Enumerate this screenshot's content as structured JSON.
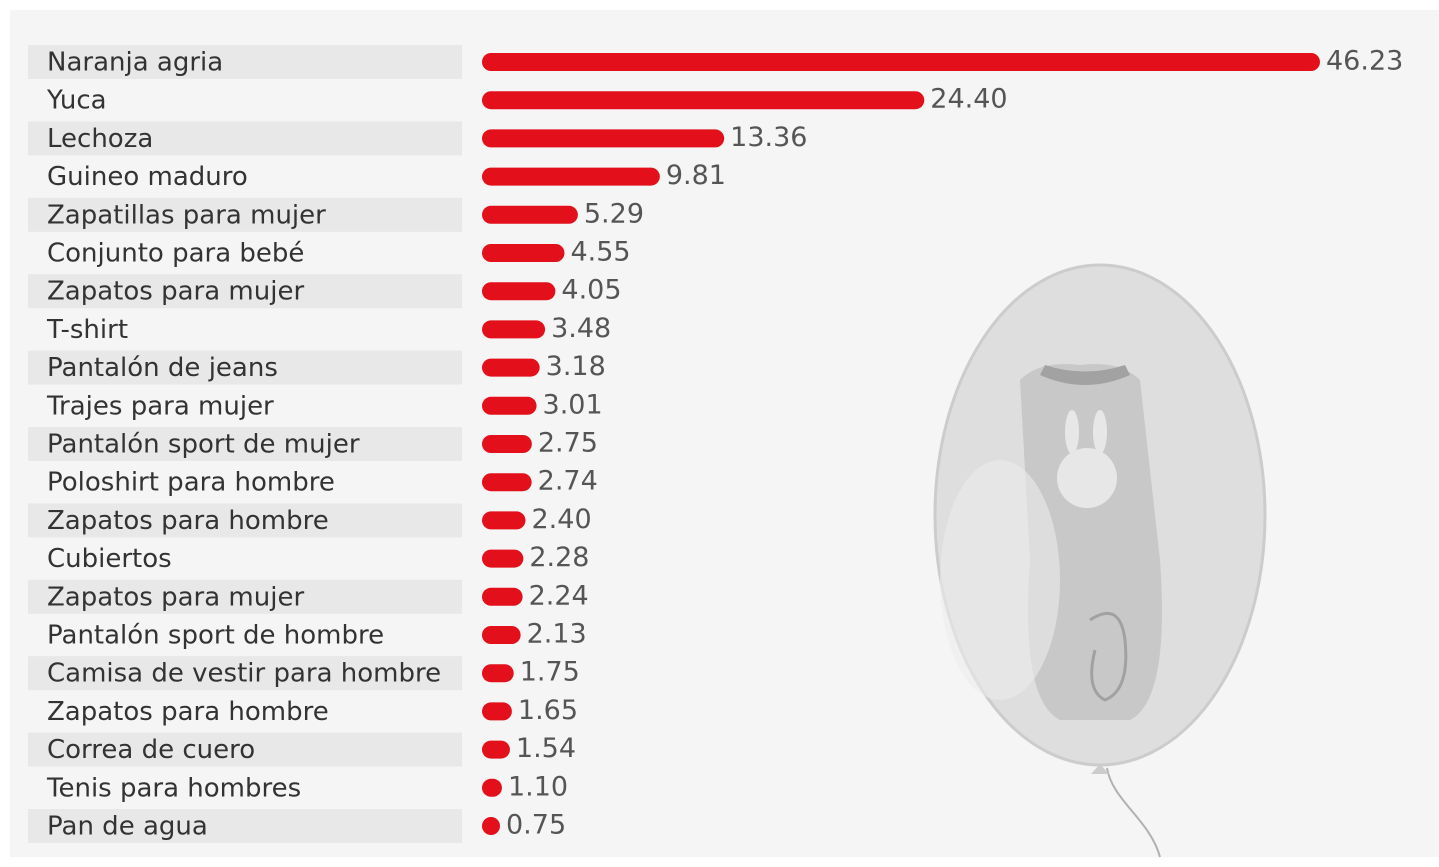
{
  "chart_data": {
    "type": "bar",
    "orientation": "horizontal",
    "color": "#e30f1b",
    "categories": [
      "Naranja agria",
      "Yuca",
      "Lechoza",
      "Guineo maduro",
      "Zapatillas para mujer",
      "Conjunto para bebé",
      "Zapatos para mujer",
      "T-shirt",
      "Pantalón de jeans",
      "Trajes para mujer",
      "Pantalón sport de mujer",
      "Poloshirt para hombre",
      "Zapatos para hombre",
      "Cubiertos",
      "Zapatos para mujer",
      "Pantalón sport de hombre",
      "Camisa de vestir para hombre",
      "Zapatos para hombre",
      "Correa de cuero",
      "Tenis para hombres",
      "Pan de agua"
    ],
    "values": [
      46.23,
      24.4,
      13.36,
      9.81,
      5.29,
      4.55,
      4.05,
      3.48,
      3.18,
      3.01,
      2.75,
      2.74,
      2.4,
      2.28,
      2.24,
      2.13,
      1.75,
      1.65,
      1.54,
      1.1,
      0.75
    ],
    "value_labels": [
      "46.23",
      "24.40",
      "13.36",
      "9.81",
      "5.29",
      "4.55",
      "4.05",
      "3.48",
      "3.18",
      "3.01",
      "2.75",
      "2.74",
      "2.40",
      "2.28",
      "2.24",
      "2.13",
      "1.75",
      "1.65",
      "1.54",
      "1.10",
      "0.75"
    ]
  }
}
